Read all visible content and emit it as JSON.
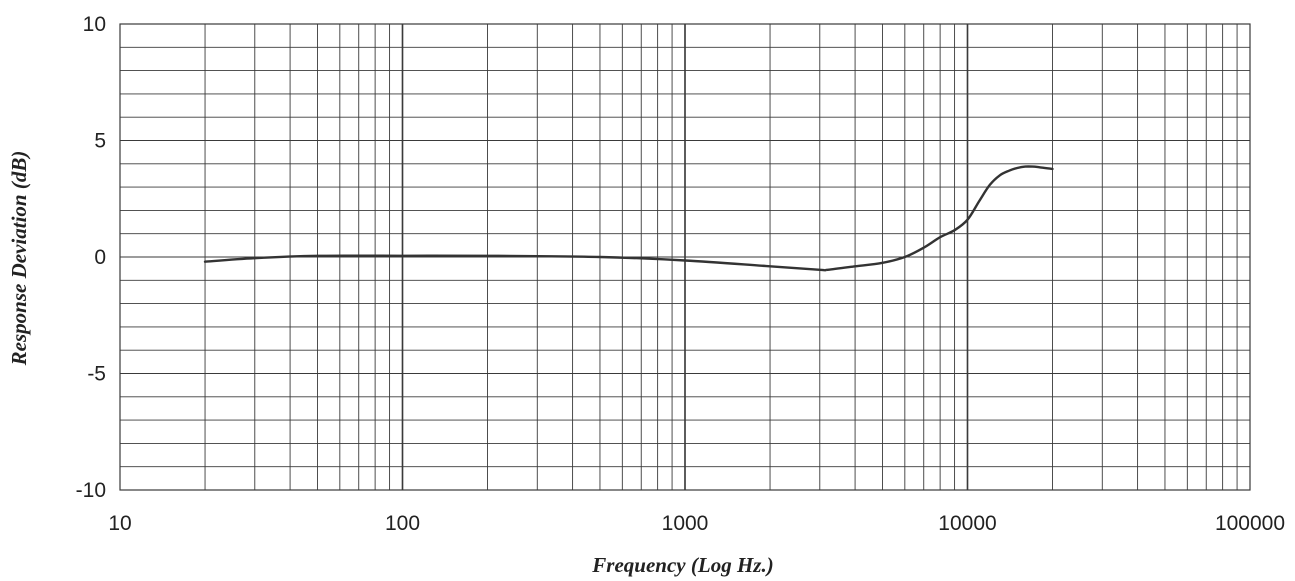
{
  "chart_data": {
    "type": "line",
    "title": "",
    "xlabel": "Frequency (Log Hz.)",
    "ylabel": "Response Deviation (dB)",
    "x_scale": "log",
    "xlim": [
      10,
      100000
    ],
    "ylim": [
      -10,
      10
    ],
    "x_ticks": [
      "10",
      "100",
      "1000",
      "10000",
      "100000"
    ],
    "y_ticks": [
      "10",
      "5",
      "0",
      "-5",
      "-10"
    ],
    "grid": true,
    "y_minor_step": 1,
    "line_color": "#333333",
    "grid_color": "#3a3a3a",
    "series": [
      {
        "x": [
          20,
          30,
          50,
          100,
          200,
          500,
          1000,
          2000,
          3000,
          3200,
          4000,
          5000,
          6000,
          7000,
          8000,
          9000,
          10000,
          11000,
          12000,
          13000,
          14000,
          15000,
          16000,
          17000,
          18000,
          20000
        ],
        "y": [
          -0.2,
          -0.05,
          0.05,
          0.05,
          0.05,
          0.0,
          -0.15,
          -0.4,
          -0.55,
          -0.55,
          -0.4,
          -0.25,
          0.0,
          0.4,
          0.85,
          1.15,
          1.6,
          2.4,
          3.1,
          3.5,
          3.7,
          3.82,
          3.88,
          3.88,
          3.85,
          3.78
        ]
      }
    ]
  }
}
